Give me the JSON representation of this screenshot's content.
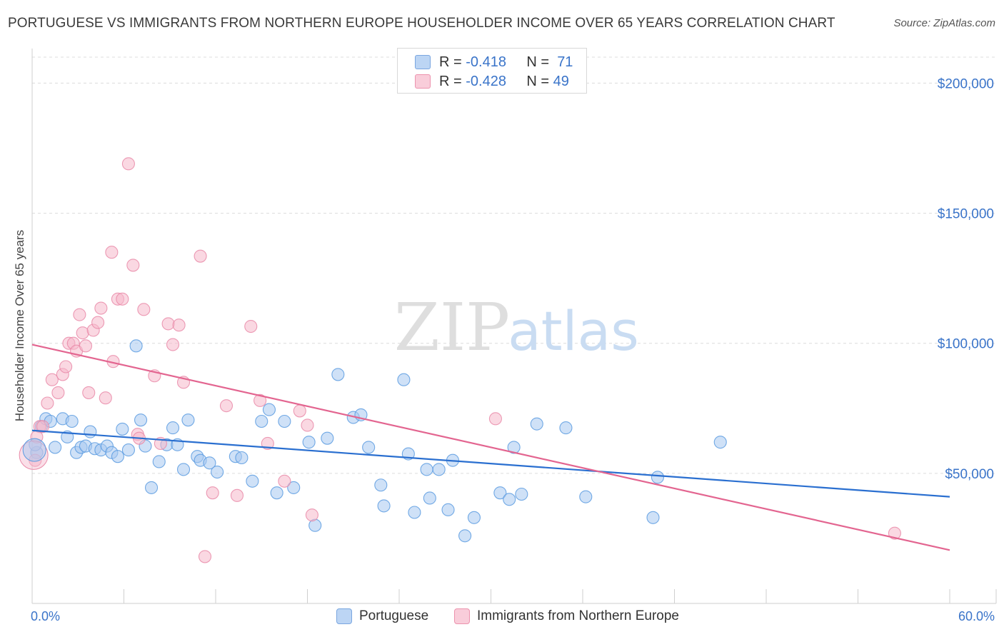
{
  "header": {
    "title": "PORTUGUESE VS IMMIGRANTS FROM NORTHERN EUROPE HOUSEHOLDER INCOME OVER 65 YEARS CORRELATION CHART",
    "source": "Source: ZipAtlas.com"
  },
  "watermark": {
    "zip": "ZIP",
    "atlas": "atlas"
  },
  "legend": {
    "rows": [
      {
        "r_label": "R =",
        "r_value": "-0.418",
        "n_label": "N =",
        "n_value": "71",
        "color": "#a8c8f0"
      },
      {
        "r_label": "R =",
        "r_value": "-0.428",
        "n_label": "N =",
        "n_value": "49",
        "color": "#f5b8cb"
      }
    ]
  },
  "bottom_legend": {
    "items": [
      {
        "label": "Portuguese",
        "color": "#a8c8f0"
      },
      {
        "label": "Immigrants from Northern Europe",
        "color": "#f5b8cb"
      }
    ]
  },
  "chart_data": {
    "type": "scatter",
    "title": "PORTUGUESE VS IMMIGRANTS FROM NORTHERN EUROPE HOUSEHOLDER INCOME OVER 65 YEARS CORRELATION CHART",
    "xlabel": "",
    "ylabel": "Householder Income Over 65 years",
    "xlim": [
      0,
      60
    ],
    "ylim": [
      0,
      210000
    ],
    "x_tick_labels": [
      "0.0%",
      "60.0%"
    ],
    "y_ticks": [
      50000,
      100000,
      150000,
      200000
    ],
    "y_tick_labels": [
      "$50,000",
      "$100,000",
      "$150,000",
      "$200,000"
    ],
    "grid": true,
    "legend_position": "top-center",
    "series": [
      {
        "name": "Portuguese",
        "color": "#5b9be0",
        "fill": "#a8c8f0",
        "trend": {
          "x": [
            0,
            60
          ],
          "y": [
            66500,
            41000
          ],
          "color": "#2a6fd0"
        },
        "points": [
          [
            0.3,
            58000
          ],
          [
            0.6,
            68000
          ],
          [
            0.9,
            71000
          ],
          [
            1.2,
            70000
          ],
          [
            1.5,
            60000
          ],
          [
            2.0,
            71000
          ],
          [
            2.3,
            64000
          ],
          [
            2.6,
            70000
          ],
          [
            2.9,
            58000
          ],
          [
            3.2,
            60000
          ],
          [
            3.5,
            60500
          ],
          [
            3.8,
            66000
          ],
          [
            4.1,
            59500
          ],
          [
            4.5,
            59000
          ],
          [
            4.9,
            60500
          ],
          [
            5.2,
            58000
          ],
          [
            5.6,
            56500
          ],
          [
            5.9,
            67000
          ],
          [
            6.3,
            59000
          ],
          [
            6.8,
            99000
          ],
          [
            7.1,
            70500
          ],
          [
            7.4,
            60500
          ],
          [
            7.8,
            44500
          ],
          [
            8.3,
            54500
          ],
          [
            8.8,
            61000
          ],
          [
            9.2,
            67500
          ],
          [
            9.5,
            61000
          ],
          [
            9.9,
            51500
          ],
          [
            10.2,
            70500
          ],
          [
            10.8,
            56500
          ],
          [
            11.0,
            55000
          ],
          [
            11.6,
            54000
          ],
          [
            12.1,
            50500
          ],
          [
            13.3,
            56500
          ],
          [
            13.7,
            56000
          ],
          [
            14.4,
            47000
          ],
          [
            15.0,
            70000
          ],
          [
            15.5,
            74500
          ],
          [
            16.0,
            42500
          ],
          [
            16.5,
            70000
          ],
          [
            17.1,
            44500
          ],
          [
            18.1,
            62000
          ],
          [
            18.5,
            30000
          ],
          [
            19.3,
            63500
          ],
          [
            20.0,
            88000
          ],
          [
            21.0,
            71500
          ],
          [
            21.5,
            72500
          ],
          [
            22.0,
            60000
          ],
          [
            22.8,
            45500
          ],
          [
            23.0,
            37500
          ],
          [
            24.3,
            86000
          ],
          [
            24.6,
            57500
          ],
          [
            25.0,
            35000
          ],
          [
            25.8,
            51500
          ],
          [
            26.0,
            40500
          ],
          [
            26.6,
            51500
          ],
          [
            27.2,
            36000
          ],
          [
            27.5,
            55000
          ],
          [
            28.3,
            26000
          ],
          [
            28.9,
            33000
          ],
          [
            30.6,
            42500
          ],
          [
            31.2,
            40000
          ],
          [
            31.5,
            60000
          ],
          [
            32.0,
            42000
          ],
          [
            33.0,
            69000
          ],
          [
            34.9,
            67500
          ],
          [
            36.2,
            41000
          ],
          [
            40.6,
            33000
          ],
          [
            40.9,
            48500
          ],
          [
            45.0,
            62000
          ],
          [
            0.2,
            61000
          ]
        ]
      },
      {
        "name": "Immigrants from Northern Europe",
        "color": "#e98aa8",
        "fill": "#f5b8cb",
        "trend": {
          "x": [
            0,
            60
          ],
          "y": [
            99500,
            20500
          ],
          "color": "#e36590"
        },
        "points": [
          [
            0.2,
            55000
          ],
          [
            0.5,
            68000
          ],
          [
            1.0,
            77000
          ],
          [
            1.3,
            86000
          ],
          [
            1.7,
            81000
          ],
          [
            2.0,
            88000
          ],
          [
            2.2,
            91000
          ],
          [
            2.4,
            100000
          ],
          [
            2.7,
            100000
          ],
          [
            2.9,
            97000
          ],
          [
            3.1,
            111000
          ],
          [
            3.3,
            104000
          ],
          [
            3.5,
            99000
          ],
          [
            3.7,
            81000
          ],
          [
            4.0,
            105000
          ],
          [
            4.3,
            108000
          ],
          [
            4.5,
            113500
          ],
          [
            4.8,
            79000
          ],
          [
            5.2,
            135000
          ],
          [
            5.3,
            93000
          ],
          [
            5.6,
            117000
          ],
          [
            5.9,
            117000
          ],
          [
            6.3,
            169000
          ],
          [
            6.6,
            130000
          ],
          [
            6.9,
            65000
          ],
          [
            7.0,
            63500
          ],
          [
            7.3,
            113000
          ],
          [
            8.0,
            87500
          ],
          [
            8.4,
            61500
          ],
          [
            8.9,
            107500
          ],
          [
            9.2,
            99500
          ],
          [
            9.6,
            107000
          ],
          [
            9.9,
            85000
          ],
          [
            11.0,
            133500
          ],
          [
            11.3,
            18000
          ],
          [
            11.8,
            42500
          ],
          [
            12.7,
            76000
          ],
          [
            13.4,
            41500
          ],
          [
            14.3,
            106500
          ],
          [
            14.9,
            78000
          ],
          [
            15.4,
            61500
          ],
          [
            16.5,
            47000
          ],
          [
            17.5,
            74000
          ],
          [
            18.0,
            68500
          ],
          [
            18.3,
            34000
          ],
          [
            30.3,
            71000
          ],
          [
            56.4,
            27000
          ],
          [
            0.3,
            64000
          ],
          [
            0.7,
            68000
          ]
        ]
      }
    ]
  }
}
